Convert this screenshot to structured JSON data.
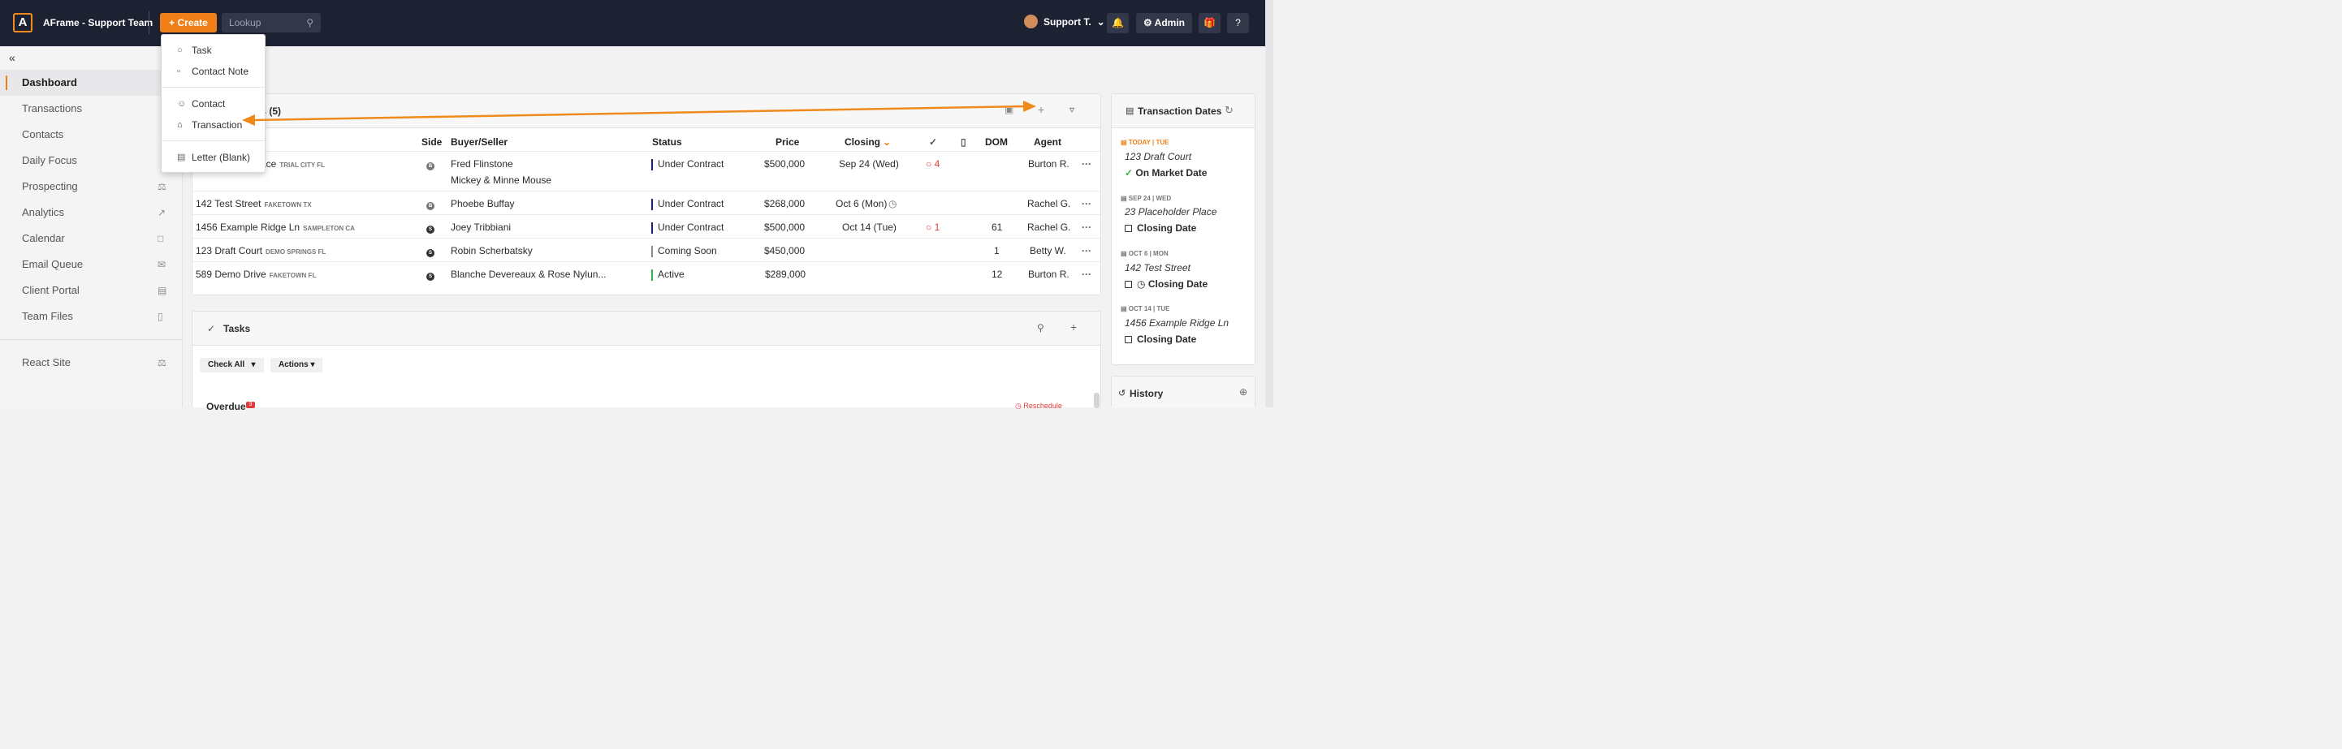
{
  "header": {
    "team_name": "AFrame - Support Team",
    "create_label": "Create",
    "lookup_placeholder": "Lookup",
    "user_name": "Support T.",
    "admin_label": "Admin"
  },
  "create_menu": {
    "items": [
      "Task",
      "Contact Note",
      "Contact",
      "Transaction",
      "Letter (Blank)"
    ]
  },
  "sidebar": {
    "items": [
      "Dashboard",
      "Transactions",
      "Contacts",
      "Daily Focus",
      "Prospecting",
      "Analytics",
      "Calendar",
      "Email Queue",
      "Client Portal",
      "Team Files",
      "React Site"
    ]
  },
  "transactions": {
    "title_fragment": "ns (5)",
    "columns": {
      "side": "Side",
      "buyer": "Buyer/Seller",
      "status": "Status",
      "price": "Price",
      "closing": "Closing",
      "dom": "DOM",
      "agent": "Agent"
    },
    "rows": [
      {
        "address": "ace",
        "city": "TRIAL CITY FL",
        "side": "B",
        "buyer": "Fred Flinstone",
        "buyer2": "Mickey & Minne Mouse",
        "status": "Under Contract",
        "price": "$500,000",
        "closing": "Sep 24 (Wed)",
        "tasks": "4",
        "dom": "",
        "agent": "Burton R.",
        "more": "···"
      },
      {
        "address": "142 Test Street",
        "city": "FAKETOWN TX",
        "side": "B",
        "buyer": "Phoebe Buffay",
        "status": "Under Contract",
        "price": "$268,000",
        "closing": "Oct 6 (Mon)",
        "tasks": "",
        "dom": "",
        "agent": "Rachel G.",
        "more": "···"
      },
      {
        "address": "1456 Example Ridge Ln",
        "city": "SAMPLETON CA",
        "side": "S",
        "buyer": "Joey Tribbiani",
        "status": "Under Contract",
        "price": "$500,000",
        "closing": "Oct 14 (Tue)",
        "tasks": "1",
        "dom": "61",
        "agent": "Rachel G.",
        "more": "···"
      },
      {
        "address": "123 Draft Court",
        "city": "DEMO SPRINGS FL",
        "side": "S",
        "buyer": "Robin Scherbatsky",
        "status": "Coming Soon",
        "price": "$450,000",
        "closing": "",
        "tasks": "",
        "dom": "1",
        "agent": "Betty W.",
        "more": "···"
      },
      {
        "address": "589 Demo Drive",
        "city": "FAKETOWN FL",
        "side": "S",
        "buyer": "Blanche Devereaux & Rose Nylun...",
        "status": "Active",
        "price": "$289,000",
        "closing": "",
        "tasks": "",
        "dom": "12",
        "agent": "Burton R.",
        "more": "···"
      }
    ]
  },
  "tasks_panel": {
    "title": "Tasks",
    "check_all": "Check All",
    "actions": "Actions",
    "overdue": "Overdue",
    "overdue_count": "3",
    "reschedule": "Reschedule"
  },
  "transaction_dates": {
    "title": "Transaction Dates",
    "groups": [
      {
        "date": "TODAY | TUE",
        "address": "123 Draft Court",
        "item": "On Market Date"
      },
      {
        "date": "SEP 24 | WED",
        "address": "23 Placeholder Place",
        "item": "Closing Date"
      },
      {
        "date": "OCT 6 | MON",
        "address": "142 Test Street",
        "item": "Closing Date"
      },
      {
        "date": "OCT 14 | TUE",
        "address": "1456 Example Ridge Ln",
        "item": "Closing Date"
      }
    ]
  },
  "history": {
    "title": "History"
  },
  "colors": {
    "accent": "#f07f1a",
    "topbar": "#1d2233",
    "under_contract": "#1c1f6e",
    "coming_soon": "#8a8a8a",
    "active": "#2fb34a",
    "alert_red": "#e03a3a"
  }
}
